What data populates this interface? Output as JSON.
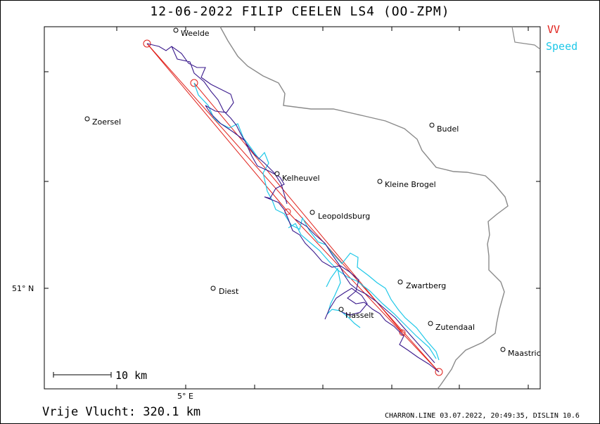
{
  "title": "12-06-2022   FILIP CEELEN   LS4 (OO-ZPM)",
  "legend": {
    "vv": "VV",
    "speed": "Speed"
  },
  "colors": {
    "vv": "#e0201a",
    "speed": "#1ec8e8",
    "track": "#3a1a8c",
    "border": "#888888"
  },
  "places": [
    {
      "name": "Weelde"
    },
    {
      "name": "Zoersel"
    },
    {
      "name": "Budel"
    },
    {
      "name": "Kelheuvel"
    },
    {
      "name": "Kleine Brogel"
    },
    {
      "name": "Leopoldsburg"
    },
    {
      "name": "Zwartberg"
    },
    {
      "name": "Diest"
    },
    {
      "name": "Hasselt"
    },
    {
      "name": "Zutendaal"
    },
    {
      "name": "Maastric"
    }
  ],
  "axes": {
    "lat_label": "51° N",
    "lon_label": "5° E"
  },
  "scale_bar": "10 km",
  "distance": "Vrije Vlucht:  320.1 km",
  "footer": "CHARRON.LINE 03.07.2022, 20:49:35, DISLIN 10.6"
}
